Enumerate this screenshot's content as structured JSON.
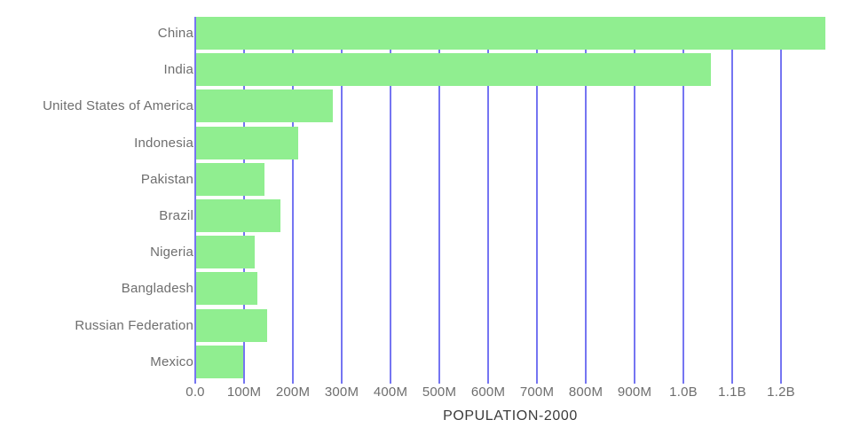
{
  "chart_data": {
    "type": "bar",
    "orientation": "horizontal",
    "title": "POPULATION-2000",
    "xlabel": "POPULATION-2000",
    "ylabel": "",
    "categories": [
      "China",
      "India",
      "United States of America",
      "Indonesia",
      "Pakistan",
      "Brazil",
      "Nigeria",
      "Bangladesh",
      "Russian Federation",
      "Mexico"
    ],
    "series": [
      {
        "name": "Population 2000",
        "values_millions": [
          1290.6,
          1056.6,
          281.7,
          211.5,
          142.3,
          174.8,
          122.3,
          127.7,
          146.6,
          98.9
        ]
      }
    ],
    "x_axis": {
      "unit": "people",
      "xlim_millions": [
        0,
        1345
      ],
      "ticks": [
        {
          "value_millions": 0,
          "label": "0.0"
        },
        {
          "value_millions": 100,
          "label": "100M"
        },
        {
          "value_millions": 200,
          "label": "200M"
        },
        {
          "value_millions": 300,
          "label": "300M"
        },
        {
          "value_millions": 400,
          "label": "400M"
        },
        {
          "value_millions": 500,
          "label": "500M"
        },
        {
          "value_millions": 600,
          "label": "600M"
        },
        {
          "value_millions": 700,
          "label": "700M"
        },
        {
          "value_millions": 800,
          "label": "800M"
        },
        {
          "value_millions": 900,
          "label": "900M"
        },
        {
          "value_millions": 1000,
          "label": "1.0B"
        },
        {
          "value_millions": 1100,
          "label": "1.1B"
        },
        {
          "value_millions": 1200,
          "label": "1.2B"
        }
      ]
    },
    "grid": "vertical",
    "legend": false,
    "colors": {
      "bar": "#90ee90",
      "gridline": "#7575f2",
      "category_label": "#6e6e6e",
      "tick_label": "#6e6e6e",
      "title": "#3b3b3b",
      "background": "#ffffff"
    }
  }
}
